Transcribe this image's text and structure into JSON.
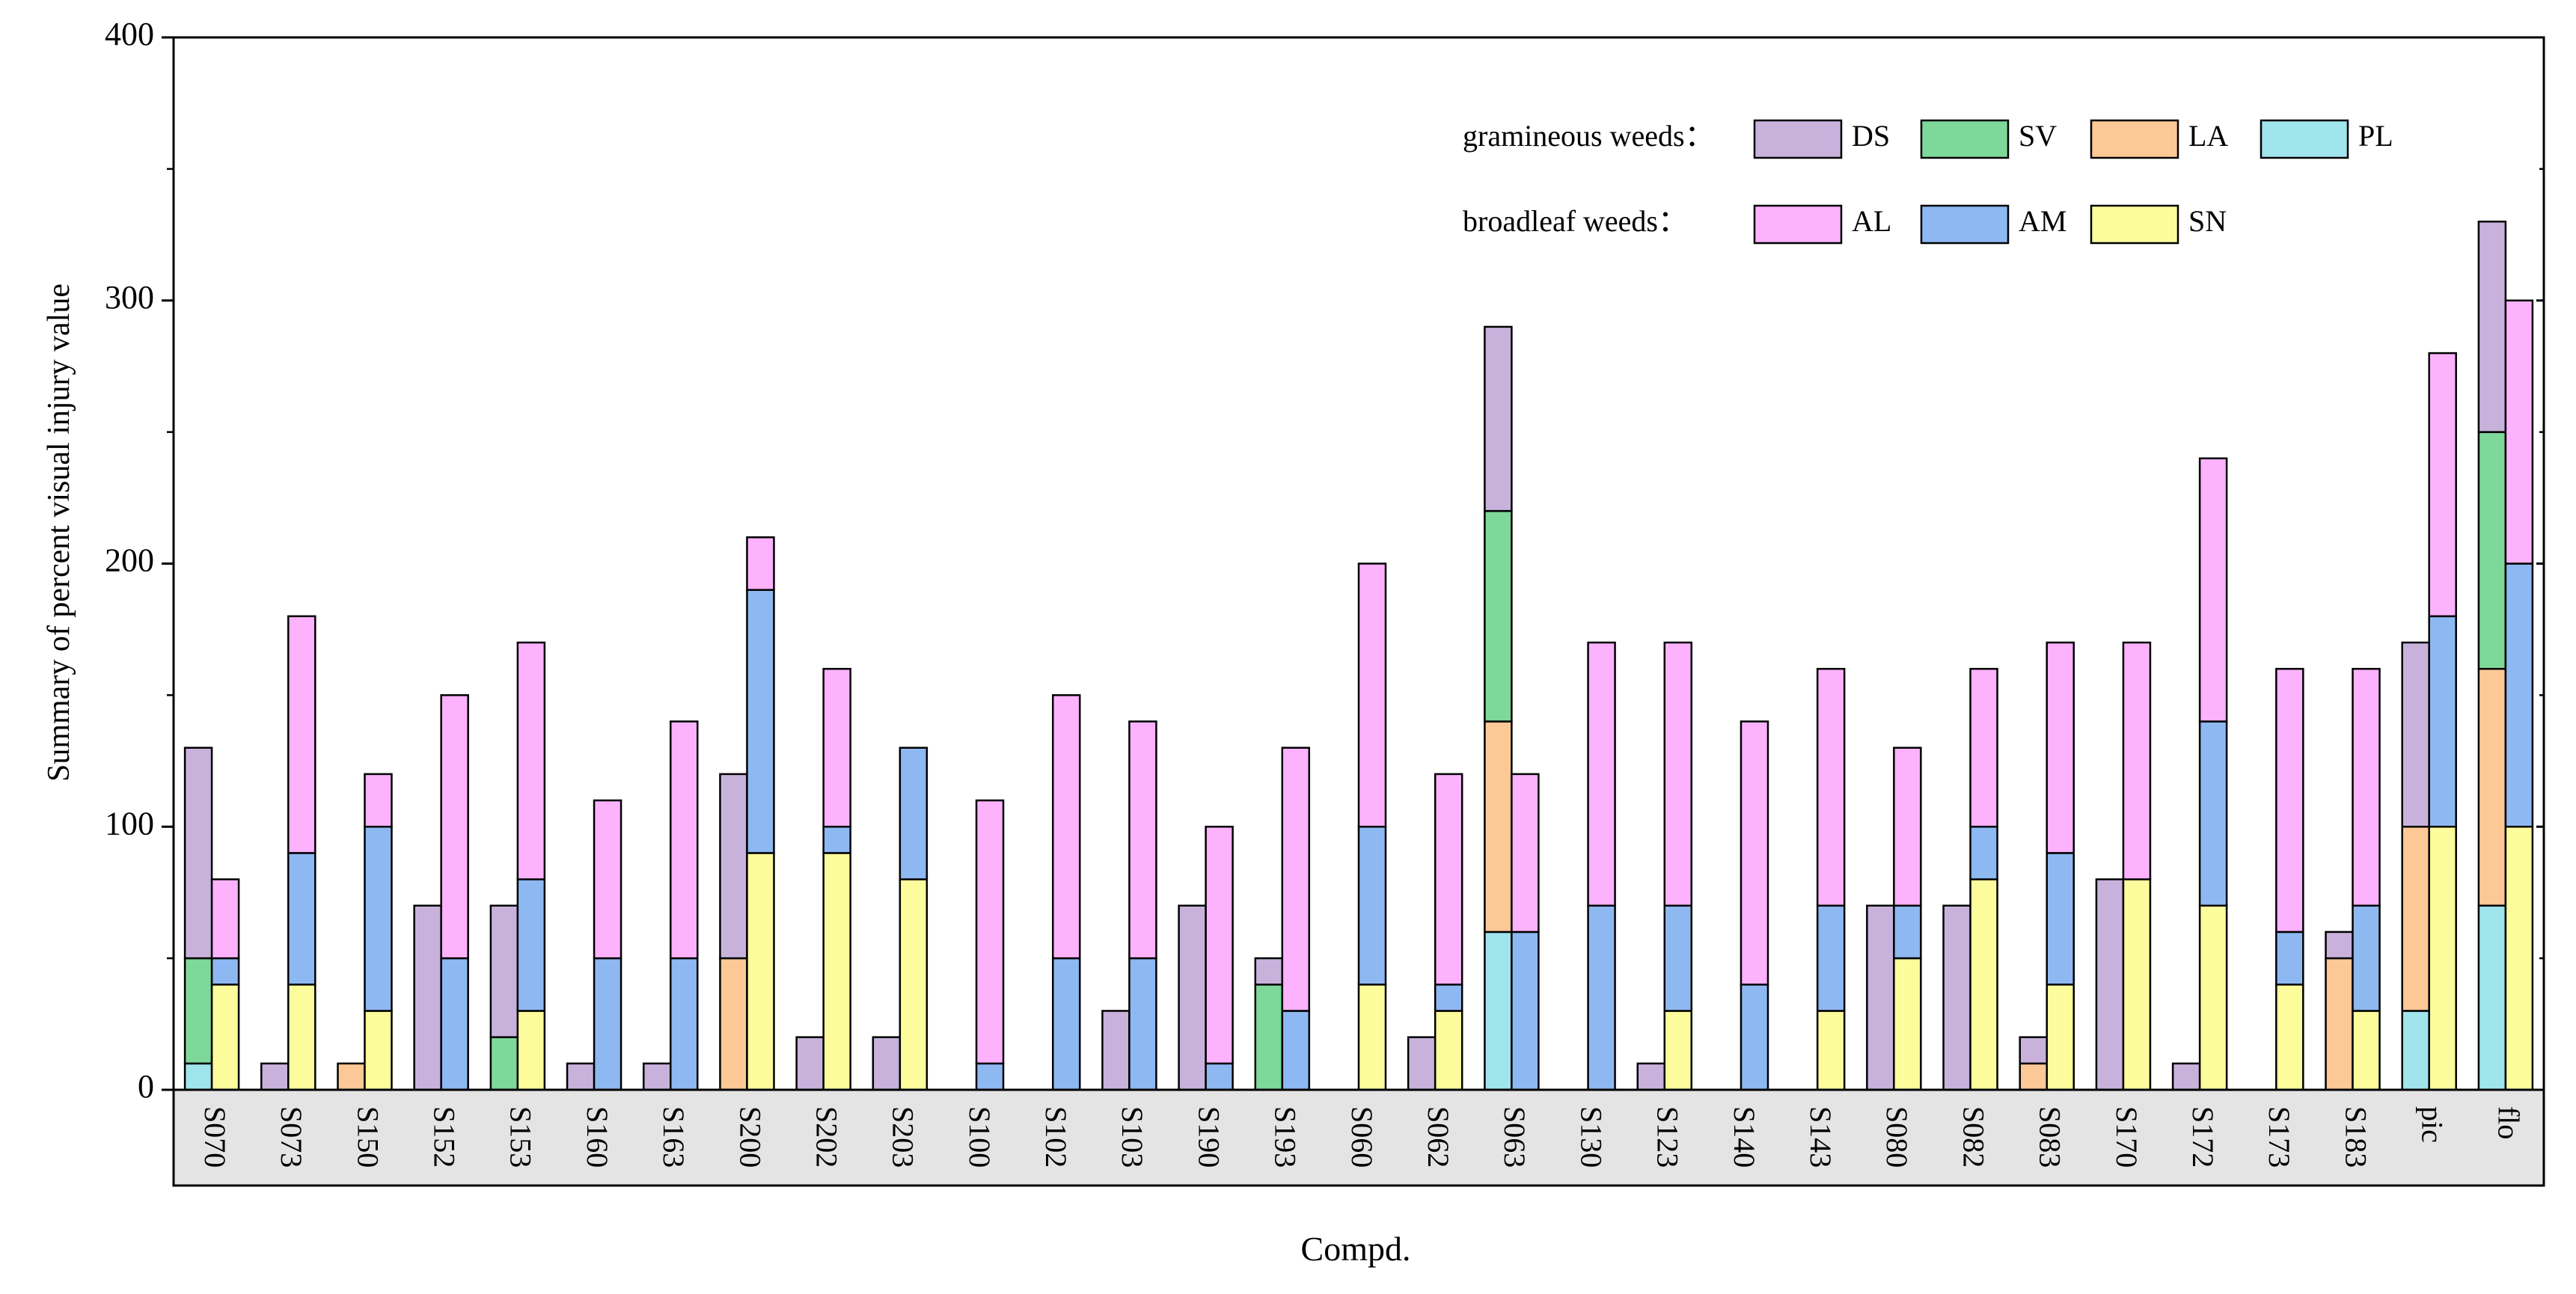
{
  "chart_data": {
    "type": "bar",
    "stacked": true,
    "grouped": true,
    "title": "",
    "xlabel": "Compd.",
    "ylabel": "Summary of percent visual injury value",
    "ylim": [
      0,
      400
    ],
    "yticks": [
      0,
      100,
      200,
      300,
      400
    ],
    "categories": [
      "S070",
      "S073",
      "S150",
      "S152",
      "S153",
      "S160",
      "S163",
      "S200",
      "S202",
      "S203",
      "S100",
      "S102",
      "S103",
      "S190",
      "S193",
      "S060",
      "S062",
      "S063",
      "S130",
      "S123",
      "S140",
      "S143",
      "S080",
      "S082",
      "S083",
      "S170",
      "S172",
      "S173",
      "S183",
      "pic",
      "flo"
    ],
    "groups": [
      {
        "name": "gramineous weeds",
        "label": "gramineous weeds：",
        "series": [
          {
            "name": "PL",
            "color": "#a0e4ec",
            "values": [
              10,
              0,
              0,
              0,
              0,
              0,
              0,
              0,
              0,
              0,
              0,
              0,
              0,
              0,
              0,
              0,
              0,
              60,
              0,
              0,
              0,
              0,
              0,
              0,
              0,
              0,
              0,
              0,
              0,
              30,
              70
            ]
          },
          {
            "name": "LA",
            "color": "#fcc896",
            "values": [
              0,
              0,
              10,
              0,
              0,
              0,
              0,
              50,
              0,
              0,
              0,
              0,
              0,
              0,
              0,
              0,
              0,
              80,
              0,
              0,
              0,
              0,
              0,
              0,
              10,
              0,
              0,
              0,
              50,
              70,
              90
            ]
          },
          {
            "name": "SV",
            "color": "#7ed89a",
            "values": [
              40,
              0,
              0,
              0,
              20,
              0,
              0,
              0,
              0,
              0,
              0,
              0,
              0,
              0,
              40,
              0,
              0,
              80,
              0,
              0,
              0,
              0,
              0,
              0,
              0,
              0,
              0,
              0,
              0,
              0,
              90
            ]
          },
          {
            "name": "DS",
            "color": "#c8b2dc",
            "values": [
              80,
              10,
              0,
              70,
              50,
              10,
              10,
              70,
              20,
              20,
              0,
              0,
              30,
              70,
              10,
              0,
              20,
              70,
              0,
              10,
              0,
              0,
              70,
              70,
              10,
              80,
              10,
              0,
              10,
              70,
              80
            ]
          }
        ]
      },
      {
        "name": "broadleaf weeds",
        "label": "broadleaf weeds：",
        "series": [
          {
            "name": "SN",
            "color": "#fcfc9c",
            "values": [
              40,
              40,
              30,
              0,
              30,
              0,
              0,
              90,
              90,
              80,
              0,
              0,
              0,
              0,
              0,
              40,
              30,
              0,
              0,
              30,
              0,
              30,
              50,
              80,
              40,
              80,
              70,
              40,
              30,
              100,
              100
            ]
          },
          {
            "name": "AM",
            "color": "#8eb8f2",
            "values": [
              10,
              50,
              70,
              50,
              50,
              50,
              50,
              100,
              10,
              50,
              10,
              50,
              50,
              10,
              30,
              60,
              10,
              60,
              70,
              40,
              40,
              40,
              20,
              20,
              50,
              0,
              70,
              20,
              40,
              80,
              100
            ]
          },
          {
            "name": "AL",
            "color": "#fcb2fc",
            "values": [
              30,
              90,
              20,
              100,
              90,
              60,
              90,
              20,
              60,
              0,
              100,
              100,
              90,
              90,
              100,
              100,
              80,
              60,
              100,
              100,
              100,
              90,
              60,
              60,
              80,
              90,
              100,
              100,
              90,
              100,
              100
            ]
          }
        ]
      }
    ],
    "legend": {
      "position": "top-right",
      "rows": [
        {
          "label": "gramineous weeds：",
          "items": [
            "DS",
            "SV",
            "LA",
            "PL"
          ]
        },
        {
          "label": "broadleaf weeds：",
          "items": [
            "AL",
            "AM",
            "SN"
          ]
        }
      ]
    },
    "grid": false
  }
}
